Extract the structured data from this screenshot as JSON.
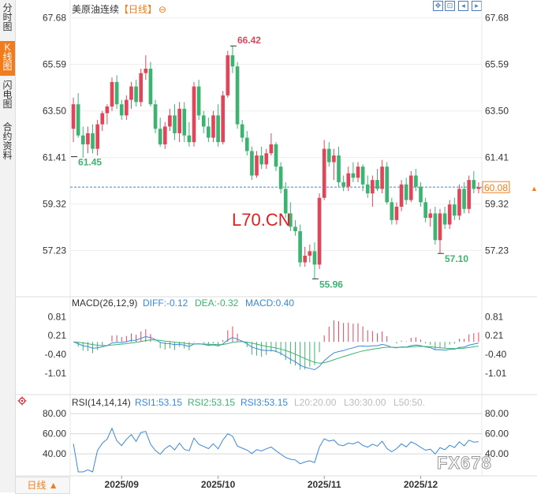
{
  "sidebar": {
    "tabs": [
      {
        "label": "分时图",
        "active": false
      },
      {
        "label": "K线图",
        "active": true
      },
      {
        "label": "闪电图",
        "active": false
      },
      {
        "label": "合约资料",
        "active": false
      }
    ]
  },
  "header": {
    "title": "美原油连续",
    "period": "【日线】",
    "toggle_icon": "minus-circle-icon",
    "tools": [
      "zoom-in-icon",
      "zoom-out-icon",
      "move-left-icon",
      "move-right-icon"
    ]
  },
  "watermark": "L70.CN",
  "brand_watermark": "FX678",
  "bottom_tab": "日线 ▲",
  "colors": {
    "up": "#e0465a",
    "down": "#3cb371",
    "accent": "#f27c1b",
    "macd_dif": "#3a88d8",
    "macd_dea": "#3cb371",
    "rsi": "#3a88d8"
  },
  "chart_data": [
    {
      "type": "candlestick",
      "title": "美原油连续【日线】",
      "y_ticks": [
        "67.68",
        "65.59",
        "63.50",
        "61.41",
        "59.32",
        "57.23"
      ],
      "ylim": [
        55.3,
        68.2
      ],
      "x_ticks": [
        "2025/09",
        "2025/10",
        "2025/11",
        "2025/12"
      ],
      "last_price": "60.08",
      "annotations": [
        {
          "label": "66.42",
          "value": 66.42
        },
        {
          "label": "61.45",
          "value": 61.45
        },
        {
          "label": "55.96",
          "value": 55.96
        },
        {
          "label": "57.10",
          "value": 57.1
        }
      ],
      "candles": [
        {
          "o": 62.7,
          "h": 64.1,
          "l": 62.1,
          "c": 63.8
        },
        {
          "o": 63.8,
          "h": 64.3,
          "l": 62.3,
          "c": 62.4
        },
        {
          "o": 62.4,
          "h": 62.8,
          "l": 61.4,
          "c": 62.0
        },
        {
          "o": 62.0,
          "h": 62.8,
          "l": 61.6,
          "c": 62.5
        },
        {
          "o": 62.5,
          "h": 62.9,
          "l": 61.6,
          "c": 61.8
        },
        {
          "o": 61.8,
          "h": 63.1,
          "l": 61.5,
          "c": 62.9
        },
        {
          "o": 62.9,
          "h": 63.5,
          "l": 62.6,
          "c": 63.4
        },
        {
          "o": 63.4,
          "h": 63.8,
          "l": 62.9,
          "c": 63.7
        },
        {
          "o": 63.7,
          "h": 65.0,
          "l": 63.5,
          "c": 64.8
        },
        {
          "o": 64.8,
          "h": 65.1,
          "l": 63.6,
          "c": 63.8
        },
        {
          "o": 63.8,
          "h": 64.0,
          "l": 63.1,
          "c": 63.3
        },
        {
          "o": 63.3,
          "h": 64.2,
          "l": 63.1,
          "c": 64.0
        },
        {
          "o": 64.0,
          "h": 64.8,
          "l": 63.6,
          "c": 64.6
        },
        {
          "o": 64.6,
          "h": 64.9,
          "l": 63.7,
          "c": 63.9
        },
        {
          "o": 63.9,
          "h": 65.4,
          "l": 63.7,
          "c": 65.2
        },
        {
          "o": 65.2,
          "h": 66.0,
          "l": 64.9,
          "c": 65.4
        },
        {
          "o": 65.4,
          "h": 65.7,
          "l": 63.7,
          "c": 63.8
        },
        {
          "o": 63.8,
          "h": 64.0,
          "l": 62.5,
          "c": 62.7
        },
        {
          "o": 62.7,
          "h": 63.2,
          "l": 61.9,
          "c": 62.0
        },
        {
          "o": 62.0,
          "h": 63.0,
          "l": 61.8,
          "c": 62.8
        },
        {
          "o": 62.8,
          "h": 63.6,
          "l": 62.6,
          "c": 63.3
        },
        {
          "o": 63.3,
          "h": 63.8,
          "l": 62.2,
          "c": 62.5
        },
        {
          "o": 62.5,
          "h": 63.9,
          "l": 62.1,
          "c": 63.6
        },
        {
          "o": 63.6,
          "h": 63.9,
          "l": 62.1,
          "c": 62.4
        },
        {
          "o": 62.4,
          "h": 63.0,
          "l": 61.9,
          "c": 62.1
        },
        {
          "o": 62.1,
          "h": 64.8,
          "l": 61.9,
          "c": 64.6
        },
        {
          "o": 64.6,
          "h": 64.9,
          "l": 63.1,
          "c": 63.3
        },
        {
          "o": 63.3,
          "h": 63.5,
          "l": 62.5,
          "c": 62.8
        },
        {
          "o": 62.8,
          "h": 63.2,
          "l": 62.1,
          "c": 62.3
        },
        {
          "o": 62.3,
          "h": 63.5,
          "l": 62.1,
          "c": 63.3
        },
        {
          "o": 63.3,
          "h": 63.8,
          "l": 61.9,
          "c": 62.1
        },
        {
          "o": 62.1,
          "h": 64.4,
          "l": 62.0,
          "c": 64.2
        },
        {
          "o": 64.2,
          "h": 66.2,
          "l": 64.1,
          "c": 66.0
        },
        {
          "o": 66.0,
          "h": 66.42,
          "l": 65.2,
          "c": 65.5
        },
        {
          "o": 65.5,
          "h": 65.7,
          "l": 62.7,
          "c": 62.9
        },
        {
          "o": 62.9,
          "h": 63.1,
          "l": 62.1,
          "c": 62.3
        },
        {
          "o": 62.3,
          "h": 62.6,
          "l": 61.5,
          "c": 61.7
        },
        {
          "o": 61.7,
          "h": 61.9,
          "l": 60.4,
          "c": 60.6
        },
        {
          "o": 60.6,
          "h": 61.7,
          "l": 60.5,
          "c": 61.5
        },
        {
          "o": 61.5,
          "h": 61.9,
          "l": 60.9,
          "c": 61.1
        },
        {
          "o": 61.1,
          "h": 61.8,
          "l": 60.9,
          "c": 61.6
        },
        {
          "o": 61.6,
          "h": 62.5,
          "l": 61.5,
          "c": 62.0
        },
        {
          "o": 62.0,
          "h": 62.1,
          "l": 60.8,
          "c": 61.0
        },
        {
          "o": 61.0,
          "h": 61.2,
          "l": 59.8,
          "c": 60.0
        },
        {
          "o": 60.0,
          "h": 60.3,
          "l": 58.7,
          "c": 58.9
        },
        {
          "o": 58.9,
          "h": 59.4,
          "l": 58.1,
          "c": 58.3
        },
        {
          "o": 58.3,
          "h": 58.6,
          "l": 57.9,
          "c": 58.1
        },
        {
          "o": 58.1,
          "h": 58.4,
          "l": 56.5,
          "c": 56.7
        },
        {
          "o": 56.7,
          "h": 57.4,
          "l": 56.5,
          "c": 57.0
        },
        {
          "o": 57.0,
          "h": 57.5,
          "l": 56.7,
          "c": 57.2
        },
        {
          "o": 57.2,
          "h": 57.6,
          "l": 55.96,
          "c": 56.6
        },
        {
          "o": 56.6,
          "h": 59.8,
          "l": 56.4,
          "c": 59.6
        },
        {
          "o": 59.6,
          "h": 62.2,
          "l": 59.5,
          "c": 61.8
        },
        {
          "o": 61.8,
          "h": 62.1,
          "l": 61.0,
          "c": 61.2
        },
        {
          "o": 61.2,
          "h": 61.8,
          "l": 60.4,
          "c": 61.5
        },
        {
          "o": 61.5,
          "h": 61.9,
          "l": 60.1,
          "c": 60.3
        },
        {
          "o": 60.3,
          "h": 60.6,
          "l": 59.9,
          "c": 60.1
        },
        {
          "o": 60.1,
          "h": 61.0,
          "l": 59.9,
          "c": 60.7
        },
        {
          "o": 60.7,
          "h": 61.2,
          "l": 60.3,
          "c": 60.5
        },
        {
          "o": 60.5,
          "h": 61.2,
          "l": 60.3,
          "c": 61.0
        },
        {
          "o": 61.0,
          "h": 61.1,
          "l": 59.9,
          "c": 60.2
        },
        {
          "o": 60.2,
          "h": 60.6,
          "l": 59.6,
          "c": 59.8
        },
        {
          "o": 59.8,
          "h": 60.6,
          "l": 59.2,
          "c": 60.4
        },
        {
          "o": 60.4,
          "h": 60.9,
          "l": 59.9,
          "c": 60.0
        },
        {
          "o": 60.0,
          "h": 61.3,
          "l": 59.8,
          "c": 61.0
        },
        {
          "o": 61.0,
          "h": 61.2,
          "l": 59.3,
          "c": 59.4
        },
        {
          "o": 59.4,
          "h": 59.6,
          "l": 58.4,
          "c": 58.6
        },
        {
          "o": 58.6,
          "h": 59.4,
          "l": 58.4,
          "c": 59.2
        },
        {
          "o": 59.2,
          "h": 60.4,
          "l": 59.0,
          "c": 60.2
        },
        {
          "o": 60.2,
          "h": 60.5,
          "l": 59.3,
          "c": 59.5
        },
        {
          "o": 59.5,
          "h": 60.8,
          "l": 59.4,
          "c": 60.6
        },
        {
          "o": 60.6,
          "h": 60.9,
          "l": 59.9,
          "c": 60.1
        },
        {
          "o": 60.1,
          "h": 60.3,
          "l": 59.2,
          "c": 59.4
        },
        {
          "o": 59.4,
          "h": 59.6,
          "l": 58.5,
          "c": 58.7
        },
        {
          "o": 58.7,
          "h": 59.1,
          "l": 58.3,
          "c": 58.9
        },
        {
          "o": 58.9,
          "h": 59.2,
          "l": 57.5,
          "c": 57.7
        },
        {
          "o": 57.7,
          "h": 59.1,
          "l": 57.1,
          "c": 58.9
        },
        {
          "o": 58.9,
          "h": 59.2,
          "l": 58.2,
          "c": 58.4
        },
        {
          "o": 58.4,
          "h": 59.5,
          "l": 58.2,
          "c": 59.3
        },
        {
          "o": 59.3,
          "h": 59.6,
          "l": 58.6,
          "c": 58.8
        },
        {
          "o": 58.8,
          "h": 60.2,
          "l": 58.6,
          "c": 60.0
        },
        {
          "o": 60.0,
          "h": 60.3,
          "l": 58.9,
          "c": 59.1
        },
        {
          "o": 59.1,
          "h": 60.6,
          "l": 58.9,
          "c": 60.4
        },
        {
          "o": 60.4,
          "h": 60.8,
          "l": 59.8,
          "c": 60.0
        },
        {
          "o": 60.0,
          "h": 60.3,
          "l": 59.8,
          "c": 60.08
        }
      ]
    },
    {
      "type": "bar+line",
      "title": "MACD(26,12,9)",
      "legend": [
        {
          "text": "DIFF:-0.12",
          "color": "#3a88d8"
        },
        {
          "text": "DEA:-0.32",
          "color": "#3cb371"
        },
        {
          "text": "MACD:0.40",
          "color": "#3a88d8"
        }
      ],
      "y_ticks": [
        "0.81",
        "0.21",
        "-0.40",
        "-1.01"
      ],
      "ylim": [
        -1.6,
        1.05
      ]
    },
    {
      "type": "line",
      "title": "RSI(14,14,14)",
      "legend": [
        {
          "text": "RSI1:53.15",
          "color": "#3a88d8"
        },
        {
          "text": "RSI2:53.15",
          "color": "#3cb371"
        },
        {
          "text": "RSI3:53.15",
          "color": "#3a88d8"
        },
        {
          "text": "L20:20.00",
          "color": "#bbbbbb"
        },
        {
          "text": "L30:30.00",
          "color": "#bbbbbb"
        },
        {
          "text": "L50:50.",
          "color": "#bbbbbb"
        }
      ],
      "y_ticks": [
        "80.00",
        "60.00",
        "40.00"
      ],
      "ylim": [
        22,
        88
      ]
    }
  ]
}
